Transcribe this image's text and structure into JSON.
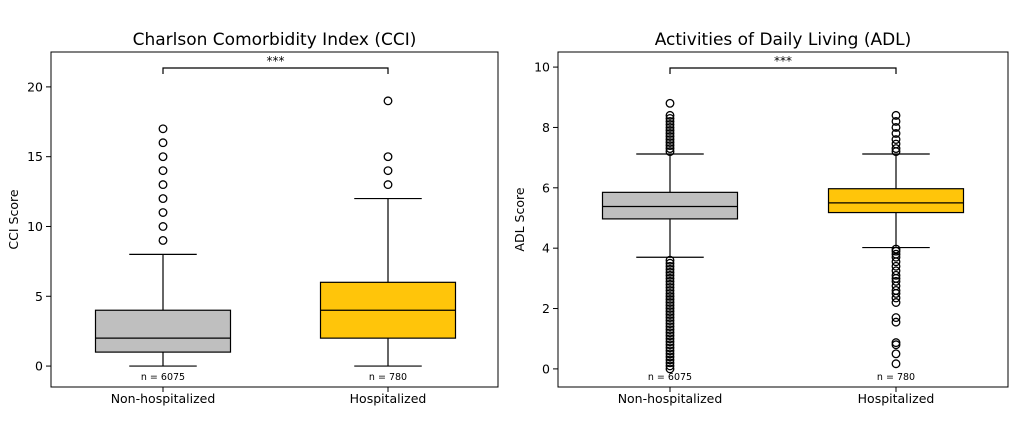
{
  "chart_data": [
    {
      "type": "box",
      "title": "Charlson Comorbidity Index (CCI)",
      "ylabel": "CCI Score",
      "ylim": [
        -1.5,
        22.5
      ],
      "yticks": [
        0,
        5,
        10,
        15,
        20
      ],
      "grid": false,
      "significance": "***",
      "categories": [
        "Non-hospitalized",
        "Hospitalized"
      ],
      "n_labels": [
        "n = 6075",
        "n = 780"
      ],
      "boxes": [
        {
          "name": "Non-hospitalized",
          "color": "#bfbfbf",
          "whisker_low": 0,
          "q1": 1,
          "median": 2,
          "q3": 4,
          "whisker_high": 8,
          "outliers": [
            9,
            10,
            11,
            12,
            13,
            14,
            15,
            16,
            17
          ]
        },
        {
          "name": "Hospitalized",
          "color": "#ffc50a",
          "whisker_low": 0,
          "q1": 2,
          "median": 4,
          "q3": 6,
          "whisker_high": 12,
          "outliers": [
            13,
            14,
            15,
            19
          ]
        }
      ]
    },
    {
      "type": "box",
      "title": "Activities of Daily Living (ADL)",
      "ylabel": "ADL Score",
      "ylim": [
        -0.6,
        10.5
      ],
      "yticks": [
        0,
        2,
        4,
        6,
        8,
        10
      ],
      "grid": false,
      "significance": "***",
      "categories": [
        "Non-hospitalized",
        "Hospitalized"
      ],
      "n_labels": [
        "n = 6075",
        "n = 780"
      ],
      "boxes": [
        {
          "name": "Non-hospitalized",
          "color": "#bfbfbf",
          "whisker_low": 3.7,
          "q1": 4.97,
          "median": 5.38,
          "q3": 5.85,
          "whisker_high": 7.12,
          "outliers": [
            0.0,
            0.1,
            0.2,
            0.3,
            0.4,
            0.5,
            0.6,
            0.7,
            0.8,
            0.9,
            1.0,
            1.1,
            1.2,
            1.3,
            1.4,
            1.5,
            1.6,
            1.7,
            1.8,
            1.9,
            2.0,
            2.1,
            2.2,
            2.3,
            2.4,
            2.5,
            2.6,
            2.7,
            2.8,
            2.9,
            3.0,
            3.1,
            3.2,
            3.3,
            3.4,
            3.5,
            3.6,
            7.2,
            7.3,
            7.4,
            7.5,
            7.6,
            7.7,
            7.8,
            7.9,
            8.0,
            8.1,
            8.2,
            8.3,
            8.4,
            8.8
          ]
        },
        {
          "name": "Hospitalized",
          "color": "#ffc50a",
          "whisker_low": 4.02,
          "q1": 5.18,
          "median": 5.5,
          "q3": 5.97,
          "whisker_high": 7.12,
          "outliers": [
            0.17,
            0.5,
            0.8,
            0.87,
            1.55,
            1.7,
            2.2,
            2.35,
            2.5,
            2.6,
            2.75,
            2.9,
            3.0,
            3.1,
            3.25,
            3.4,
            3.55,
            3.7,
            3.8,
            3.9,
            3.97,
            7.2,
            7.3,
            7.45,
            7.6,
            7.8,
            8.0,
            8.2,
            8.4
          ]
        }
      ]
    }
  ]
}
